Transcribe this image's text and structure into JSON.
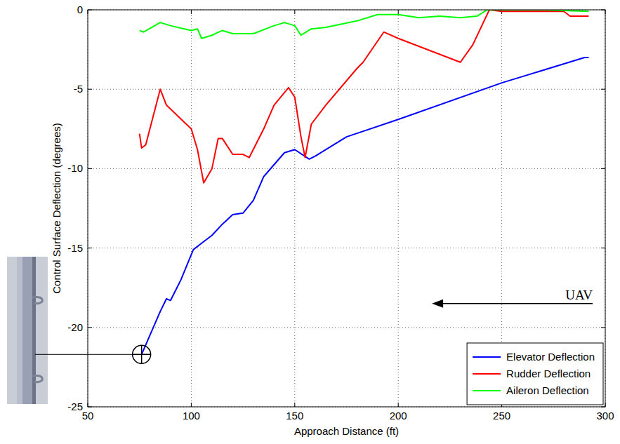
{
  "chart_data": {
    "type": "line",
    "xlabel": "Approach Distance (ft)",
    "ylabel": "Control Surface Deflection (degrees)",
    "xlim": [
      50,
      300
    ],
    "ylim": [
      -25,
      0
    ],
    "xticks": [
      50,
      100,
      150,
      200,
      250,
      300
    ],
    "yticks": [
      -25,
      -20,
      -15,
      -10,
      -5,
      0
    ],
    "grid": true,
    "legend": "lower right",
    "annotations": [
      {
        "text": "UAV"
      }
    ],
    "series": [
      {
        "name": "Elevator Deflection",
        "color": "#0000ff",
        "x": [
          76,
          80,
          85,
          88,
          90,
          95,
          101,
          105,
          110,
          115,
          120,
          125,
          130,
          135,
          145,
          150,
          157,
          160,
          175,
          200,
          250,
          290,
          292
        ],
        "values": [
          -21.7,
          -20.5,
          -19.0,
          -18.2,
          -18.3,
          -17.0,
          -15.1,
          -14.7,
          -14.2,
          -13.5,
          -12.9,
          -12.8,
          -12.0,
          -10.5,
          -9.0,
          -8.8,
          -9.4,
          -9.2,
          -8.0,
          -6.9,
          -4.6,
          -3.0,
          -3.0
        ]
      },
      {
        "name": "Rudder Deflection",
        "color": "#ff0000",
        "x": [
          75,
          76,
          78,
          85,
          88,
          100,
          103,
          106,
          110,
          113,
          115,
          120,
          125,
          128,
          135,
          140,
          147,
          150,
          153,
          155,
          158,
          165,
          180,
          183,
          193,
          200,
          230,
          236,
          244,
          250,
          280,
          283,
          292
        ],
        "values": [
          -7.8,
          -8.7,
          -8.5,
          -5.0,
          -6.0,
          -7.5,
          -8.8,
          -10.9,
          -10.0,
          -8.1,
          -8.1,
          -9.1,
          -9.1,
          -9.3,
          -7.5,
          -6.0,
          -4.9,
          -5.5,
          -8.0,
          -9.3,
          -7.2,
          -6.0,
          -3.7,
          -3.3,
          -1.4,
          -1.8,
          -3.3,
          -2.2,
          0,
          -0.1,
          -0.1,
          -0.4,
          -0.4
        ]
      },
      {
        "name": "Aileron Deflection",
        "color": "#00ff00",
        "x": [
          75,
          77,
          85,
          90,
          100,
          103,
          105,
          110,
          115,
          120,
          130,
          140,
          145,
          150,
          153,
          158,
          165,
          180,
          190,
          200,
          210,
          220,
          230,
          238,
          243,
          270,
          292
        ],
        "values": [
          -1.3,
          -1.4,
          -0.8,
          -1.0,
          -1.3,
          -1.2,
          -1.8,
          -1.6,
          -1.3,
          -1.5,
          -1.5,
          -1.0,
          -0.8,
          -1.0,
          -1.6,
          -1.2,
          -1.1,
          -0.7,
          -0.3,
          -0.3,
          -0.5,
          -0.4,
          -0.5,
          -0.4,
          0,
          0,
          -0.1
        ]
      }
    ]
  }
}
